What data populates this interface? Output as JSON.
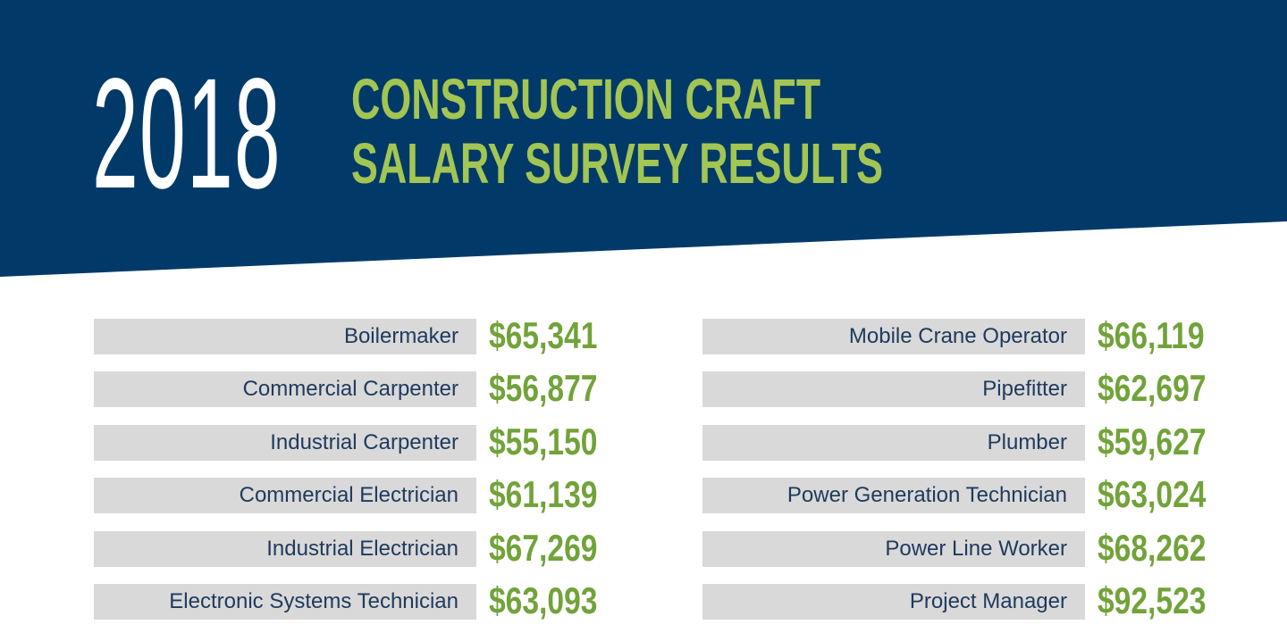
{
  "header": {
    "year": "2018",
    "title_line1": "CONSTRUCTION CRAFT",
    "title_line2": "SALARY SURVEY RESULTS"
  },
  "colors": {
    "banner": "#013a68",
    "year_text": "#ffffff",
    "title_text": "#a3c553",
    "label_bg": "#d9d9d9",
    "label_text": "#1e3a5c",
    "value_text": "#72a33a"
  },
  "chart_data": {
    "type": "table",
    "columns": [
      {
        "rows": [
          {
            "craft": "Boilermaker",
            "salary": "$65,341",
            "value": 65341
          },
          {
            "craft": "Commercial Carpenter",
            "salary": "$56,877",
            "value": 56877
          },
          {
            "craft": "Industrial Carpenter",
            "salary": "$55,150",
            "value": 55150
          },
          {
            "craft": "Commercial Electrician",
            "salary": "$61,139",
            "value": 61139
          },
          {
            "craft": "Industrial Electrician",
            "salary": "$67,269",
            "value": 67269
          },
          {
            "craft": "Electronic Systems Technician",
            "salary": "$63,093",
            "value": 63093
          }
        ]
      },
      {
        "rows": [
          {
            "craft": "Mobile Crane Operator",
            "salary": "$66,119",
            "value": 66119
          },
          {
            "craft": "Pipefitter",
            "salary": "$62,697",
            "value": 62697
          },
          {
            "craft": "Plumber",
            "salary": "$59,627",
            "value": 59627
          },
          {
            "craft": "Power Generation Technician",
            "salary": "$63,024",
            "value": 63024
          },
          {
            "craft": "Power Line Worker",
            "salary": "$68,262",
            "value": 68262
          },
          {
            "craft": "Project Manager",
            "salary": "$92,523",
            "value": 92523
          }
        ]
      }
    ]
  }
}
